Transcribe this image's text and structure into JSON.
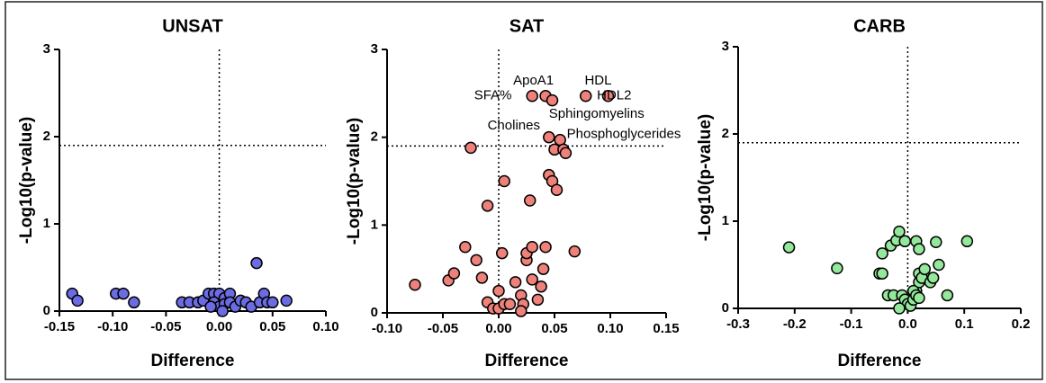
{
  "chart_data": [
    {
      "type": "scatter",
      "title": "UNSAT",
      "xlabel": "Difference",
      "ylabel": "-Log10(p-value)",
      "color": "#6b6be3",
      "x": [
        -0.138,
        -0.133,
        -0.097,
        -0.09,
        -0.08,
        -0.035,
        -0.028,
        -0.02,
        -0.015,
        -0.01,
        -0.005,
        0,
        0.005,
        0.01,
        -0.005,
        0,
        0.005,
        0.01,
        0.015,
        0.02,
        0.025,
        0.03,
        0.035,
        0.038,
        0.042,
        0.045,
        0.05,
        0.063,
        0.003,
        -0.008
      ],
      "y": [
        0.2,
        0.12,
        0.2,
        0.2,
        0.1,
        0.1,
        0.1,
        0.1,
        0.12,
        0.2,
        0.2,
        0.2,
        0.15,
        0.2,
        0.1,
        0.05,
        0.08,
        0.1,
        0.05,
        0.12,
        0.1,
        0.05,
        0.55,
        0.1,
        0.2,
        0.1,
        0.1,
        0.12,
        0.0,
        0.05
      ],
      "xlim": [
        -0.15,
        0.1
      ],
      "ylim": [
        0,
        3
      ],
      "xticks": [
        -0.15,
        {
          "value": -0.1,
          "label": "-0.10"
        },
        -0.05,
        {
          "value": 0,
          "label": "0.00"
        },
        0.05,
        {
          "value": 0.1,
          "label": "0.10"
        }
      ],
      "yticks": [
        0,
        1,
        2,
        3
      ],
      "hline": 1.9,
      "vline": 0,
      "annotations": []
    },
    {
      "type": "scatter",
      "title": "SAT",
      "xlabel": "Difference",
      "ylabel": "-Log10(p-value)",
      "color": "#ee817a",
      "x": [
        -0.075,
        -0.045,
        -0.04,
        -0.03,
        -0.02,
        -0.025,
        -0.015,
        -0.01,
        -0.01,
        -0.005,
        0,
        0,
        0.003,
        0.005,
        0.005,
        0.01,
        0.015,
        0.02,
        0.022,
        0.025,
        0.025,
        0.03,
        0.028,
        0.03,
        0.035,
        0.038,
        0.04,
        0.042,
        0.045,
        0.048,
        0.052,
        0.068,
        0.03,
        0.042,
        0.048,
        0.078,
        0.098,
        0.045,
        0.05,
        0.055,
        0.058,
        0.06,
        0.02
      ],
      "y": [
        0.32,
        0.37,
        0.45,
        0.75,
        0.6,
        1.88,
        0.4,
        1.22,
        0.12,
        0.05,
        0.25,
        0.05,
        0.68,
        1.5,
        0.1,
        0.1,
        0.35,
        0.2,
        0.1,
        0.6,
        0.68,
        0.38,
        1.28,
        0.75,
        0.15,
        0.3,
        0.5,
        0.75,
        1.57,
        1.5,
        1.4,
        0.7,
        2.47,
        2.47,
        2.42,
        2.47,
        2.47,
        2.0,
        1.86,
        1.97,
        1.86,
        1.82,
        0.02
      ],
      "xlim": [
        -0.1,
        0.15
      ],
      "ylim": [
        0,
        3
      ],
      "xticks": [
        {
          "value": -0.1,
          "label": "-0.10"
        },
        -0.05,
        {
          "value": 0,
          "label": "0.00"
        },
        0.05,
        {
          "value": 0.1,
          "label": "0.10"
        },
        0.15
      ],
      "yticks": [
        0,
        1,
        2,
        3
      ],
      "hline": 1.9,
      "vline": 0,
      "annotations": [
        {
          "text": "SFA%",
          "x": -0.022,
          "y": 2.47
        },
        {
          "text": "ApoA1",
          "x": 0.013,
          "y": 2.64
        },
        {
          "text": "HDL",
          "x": 0.077,
          "y": 2.64
        },
        {
          "text": "HDL2",
          "x": 0.088,
          "y": 2.47
        },
        {
          "text": "Sphingomyelins",
          "x": 0.045,
          "y": 2.26
        },
        {
          "text": "Cholines",
          "x": -0.01,
          "y": 2.13
        },
        {
          "text": "Phosphoglycerides",
          "x": 0.061,
          "y": 2.03
        }
      ]
    },
    {
      "type": "scatter",
      "title": "CARB",
      "xlabel": "Difference",
      "ylabel": "-Log10(p-value)",
      "color": "#93e89c",
      "x": [
        -0.21,
        -0.125,
        -0.05,
        -0.045,
        -0.045,
        -0.03,
        -0.02,
        -0.015,
        -0.005,
        0.015,
        0.02,
        0.05,
        0.105,
        -0.035,
        -0.025,
        -0.01,
        -0.005,
        0,
        0.005,
        0.01,
        0.015,
        0.02,
        0.02,
        0.025,
        0.03,
        0.04,
        0.045,
        0.055,
        0.07,
        0.01,
        0.015,
        -0.015,
        0.02
      ],
      "y": [
        0.7,
        0.46,
        0.4,
        0.4,
        0.63,
        0.72,
        0.78,
        0.88,
        0.77,
        0.77,
        0.68,
        0.76,
        0.77,
        0.15,
        0.15,
        0.15,
        0.1,
        0.05,
        0.03,
        0.1,
        0.2,
        0.3,
        0.4,
        0.35,
        0.45,
        0.3,
        0.35,
        0.5,
        0.15,
        0.2,
        0.15,
        0.0,
        0.12
      ],
      "xlim": [
        -0.3,
        0.2
      ],
      "ylim": [
        0,
        3
      ],
      "xticks": [
        -0.3,
        -0.2,
        -0.1,
        {
          "value": 0,
          "label": "0.0"
        },
        0.1,
        0.2
      ],
      "yticks": [
        0,
        1,
        2,
        3
      ],
      "hline": 1.9,
      "vline": 0,
      "annotations": []
    }
  ]
}
